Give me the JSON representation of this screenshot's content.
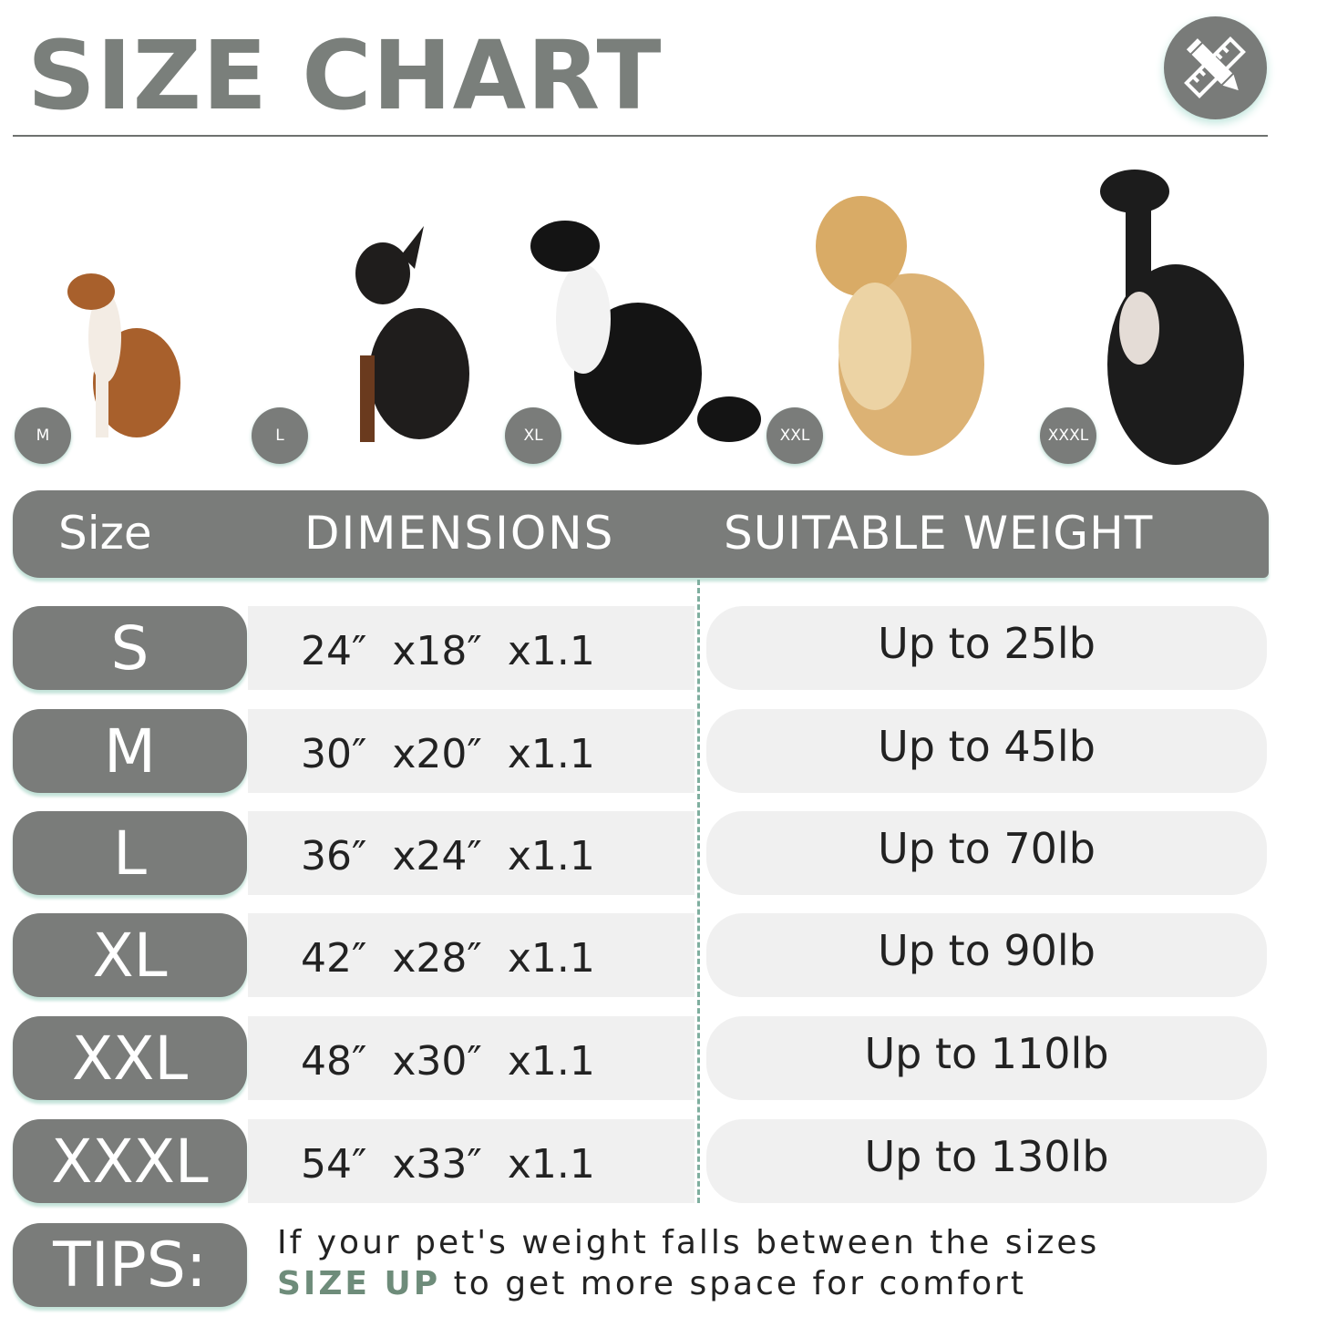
{
  "title": "SIZE CHART",
  "logo_icon": "ruler-pencil-icon",
  "dog_badges": [
    "M",
    "L",
    "XL",
    "XXL",
    "XXXL"
  ],
  "table": {
    "headers": [
      "Size",
      "DIMENSIONS",
      "SUITABLE WEIGHT"
    ],
    "rows": [
      {
        "size": "S",
        "dimensions": "24″  x18″  x1.1",
        "weight": "Up to 25lb"
      },
      {
        "size": "M",
        "dimensions": "30″  x20″  x1.1",
        "weight": "Up to 45lb"
      },
      {
        "size": "L",
        "dimensions": "36″  x24″  x1.1",
        "weight": "Up to 70lb"
      },
      {
        "size": "XL",
        "dimensions": "42″  x28″  x1.1",
        "weight": "Up to 90lb"
      },
      {
        "size": "XXL",
        "dimensions": "48″  x30″  x1.1",
        "weight": "Up to 110lb"
      },
      {
        "size": "XXXL",
        "dimensions": "54″  x33″  x1.1",
        "weight": "Up to 130lb"
      }
    ]
  },
  "tips": {
    "label": "TIPS:",
    "line1": "If your pet's weight falls between the sizes",
    "highlight": "SIZE UP",
    "line2_rest": " to get more space for comfort"
  },
  "colors": {
    "primary_gray": "#7a7c7a",
    "accent_green": "#6e8c7a",
    "row_bg": "#f0f0f0"
  }
}
